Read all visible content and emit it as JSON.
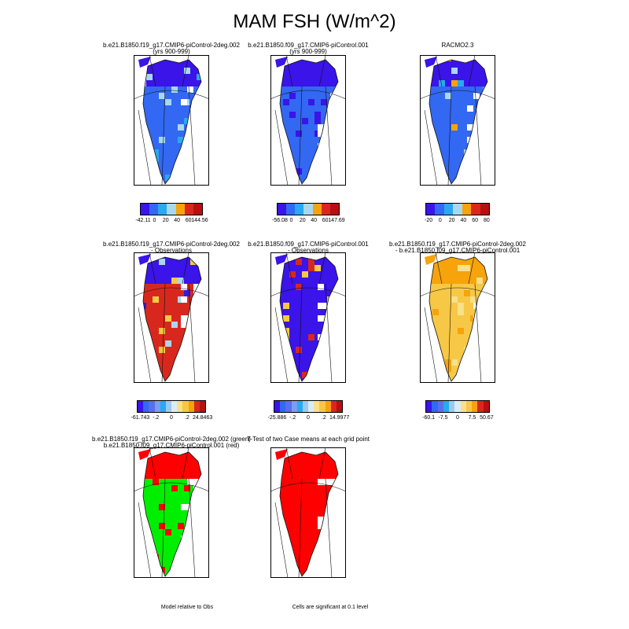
{
  "title": "MAM FSH (W/m^2)",
  "colors": {
    "dblue": "#3a14e8",
    "blue": "#3268f2",
    "lblue": "#2aa8f0",
    "sky": "#a8d8f0",
    "pale": "#d8ecf8",
    "yel": "#f7c845",
    "orng": "#f6a30c",
    "red": "#d8281e",
    "dred": "#b80f12",
    "green": "#00ee00",
    "fred": "#ff0000",
    "mid1": "#5a6ef0",
    "mid2": "#7a9ef0",
    "mid3": "#9cc8f4",
    "lyel": "#f9e08a"
  },
  "panels": [
    {
      "id": "case1",
      "title1": "b.e21.B1850.f19_g17.CMIP6-piControl-2deg.002",
      "title2": "(yrs 900-999)",
      "fill": "blue",
      "north": "dblue",
      "accents": [
        "lblue",
        "sky"
      ],
      "colorbar": [
        "dblue",
        "blue",
        "lblue",
        "sky",
        "orng",
        "red",
        "dred"
      ],
      "labels": [
        "-42.11",
        "0",
        "20",
        "40",
        "60",
        "144.56"
      ]
    },
    {
      "id": "case2",
      "title1": "b.e21.B1850.f09_g17.CMIP6-piControl.001",
      "title2": "(yrs 900-999)",
      "fill": "blue",
      "north": "dblue",
      "accents": [
        "dblue"
      ],
      "colorbar": [
        "dblue",
        "blue",
        "lblue",
        "sky",
        "orng",
        "red",
        "dred"
      ],
      "labels": [
        "-56.08",
        "0",
        "20",
        "40",
        "60",
        "147.69"
      ]
    },
    {
      "id": "obs",
      "title1": "RACMO2.3",
      "title2": "",
      "fill": "blue",
      "north": "dblue",
      "accents": [
        "lblue",
        "sky",
        "orng"
      ],
      "colorbar": [
        "dblue",
        "blue",
        "lblue",
        "sky",
        "orng",
        "red",
        "dred"
      ],
      "labels": [
        "-20",
        "0",
        "20",
        "40",
        "60",
        "80"
      ]
    },
    {
      "id": "diff1",
      "title1": "b.e21.B1850.f19_g17.CMIP6-piControl-2deg.002",
      "title2": "- Observations",
      "fill": "red",
      "north": "dblue",
      "accents": [
        "dblue",
        "sky",
        "yel"
      ],
      "colorbar": [
        "dblue",
        "blue",
        "mid1",
        "mid2",
        "lblue",
        "mid3",
        "pale",
        "lyel",
        "yel",
        "orng",
        "red",
        "dred"
      ],
      "labels": [
        "-61.743",
        "-.2",
        "0",
        ".2",
        "24.8463"
      ]
    },
    {
      "id": "diff2",
      "title1": "b.e21.B1850.f09_g17.CMIP6-piControl.001",
      "title2": "- Observations",
      "fill": "dblue",
      "north": "dblue",
      "accents": [
        "red",
        "yel"
      ],
      "colorbar": [
        "dblue",
        "blue",
        "mid1",
        "mid2",
        "lblue",
        "mid3",
        "pale",
        "lyel",
        "yel",
        "orng",
        "red",
        "dred"
      ],
      "labels": [
        "-25.886",
        "-.2",
        "0",
        ".2",
        "14.9977"
      ]
    },
    {
      "id": "diffcase",
      "title1": "b.e21.B1850.f19_g17.CMIP6-piControl-2deg.002",
      "title2": "- b.e21.B1850.f09_g17.CMIP6-piControl.001",
      "fill": "yel",
      "north": "orng",
      "accents": [
        "orng",
        "lyel"
      ],
      "colorbar": [
        "dblue",
        "blue",
        "mid1",
        "lblue",
        "mid3",
        "pale",
        "lyel",
        "yel",
        "orng",
        "red",
        "dred"
      ],
      "labels": [
        "-60.1",
        "-7.5",
        "0",
        "7.5",
        "50.67"
      ]
    },
    {
      "id": "relative",
      "title1": "b.e21.B1850.f19_g17.CMIP6-piControl-2deg.002 (green)",
      "title2": "b.e21.B1850.f09_g17.CMIP6-piControl.001 (red)",
      "fill": "green",
      "north": "fred",
      "accents": [
        "fred"
      ],
      "colorbar": [],
      "labels": [],
      "note": "Model relative to Obs"
    },
    {
      "id": "ttest",
      "title1": "T-Test of two Case means at each grid point",
      "title2": "",
      "fill": "fred",
      "north": "fred",
      "accents": [],
      "colorbar": [],
      "labels": [],
      "note": "Cells are significant at 0.1 level"
    }
  ]
}
